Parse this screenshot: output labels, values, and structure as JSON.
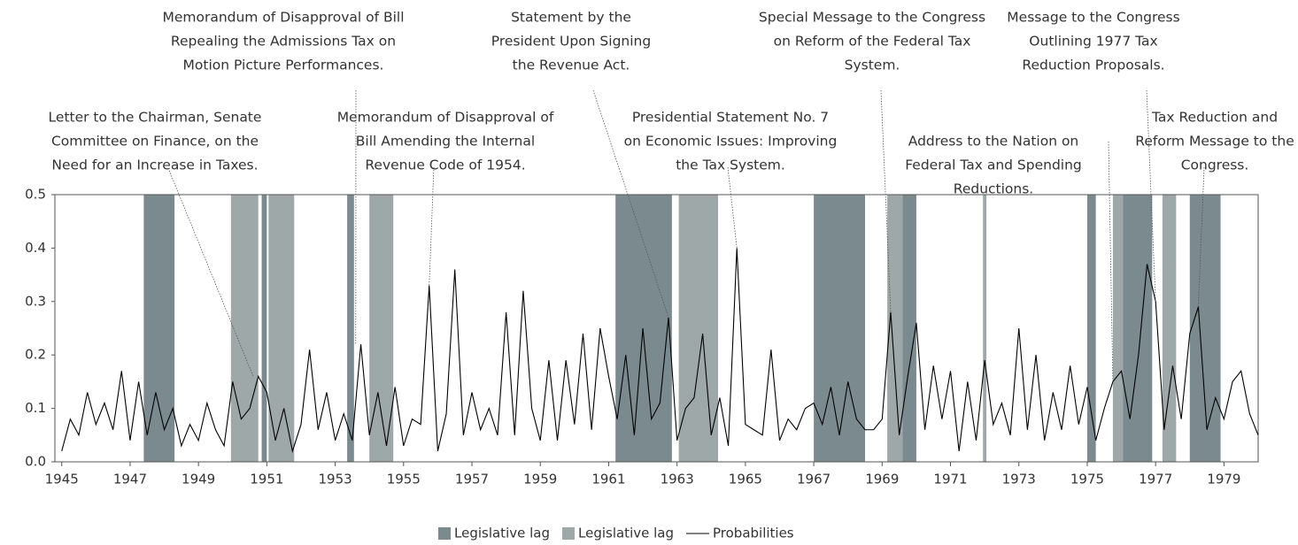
{
  "chart_data": {
    "type": "line",
    "xlim": [
      1944.8,
      1980
    ],
    "ylim": [
      0,
      0.5
    ],
    "xticks": [
      1945,
      1947,
      1949,
      1951,
      1953,
      1955,
      1957,
      1959,
      1961,
      1963,
      1965,
      1967,
      1969,
      1971,
      1973,
      1975,
      1977,
      1979
    ],
    "yticks": [
      {
        "value": 0,
        "label": "0.0"
      },
      0.1,
      0.2,
      0.3,
      0.4,
      0.5
    ],
    "bands": [
      {
        "name": "Legislative lag",
        "color": "#7b8a8f",
        "periods": [
          [
            1947.4,
            1948.3
          ],
          [
            1950.85,
            1951.0
          ],
          [
            1953.35,
            1953.55
          ],
          [
            1961.2,
            1962.85
          ],
          [
            1967.0,
            1968.5
          ],
          [
            1969.6,
            1970.0
          ],
          [
            1975.0,
            1975.25
          ],
          [
            1976.05,
            1976.9
          ],
          [
            1978.0,
            1978.9
          ]
        ]
      },
      {
        "name": "Legislative lag",
        "color": "#9ea8a8",
        "periods": [
          [
            1949.95,
            1950.75
          ],
          [
            1951.05,
            1951.8
          ],
          [
            1954.0,
            1954.7
          ],
          [
            1963.05,
            1964.2
          ],
          [
            1969.15,
            1969.6
          ],
          [
            1971.95,
            1972.05
          ],
          [
            1975.75,
            1976.05
          ],
          [
            1977.2,
            1977.6
          ]
        ]
      }
    ],
    "series": [
      {
        "name": "Probabilities",
        "color": "#000000",
        "x": [
          1945,
          1945.25,
          1945.5,
          1945.75,
          1946,
          1946.25,
          1946.5,
          1946.75,
          1947,
          1947.25,
          1947.5,
          1947.75,
          1948,
          1948.25,
          1948.5,
          1948.75,
          1949,
          1949.25,
          1949.5,
          1949.75,
          1950,
          1950.25,
          1950.5,
          1950.75,
          1951,
          1951.25,
          1951.5,
          1951.75,
          1952,
          1952.25,
          1952.5,
          1952.75,
          1953,
          1953.25,
          1953.5,
          1953.75,
          1954,
          1954.25,
          1954.5,
          1954.75,
          1955,
          1955.25,
          1955.5,
          1955.75,
          1956,
          1956.25,
          1956.5,
          1956.75,
          1957,
          1957.25,
          1957.5,
          1957.75,
          1958,
          1958.25,
          1958.5,
          1958.75,
          1959,
          1959.25,
          1959.5,
          1959.75,
          1960,
          1960.25,
          1960.5,
          1960.75,
          1961,
          1961.25,
          1961.5,
          1961.75,
          1962,
          1962.25,
          1962.5,
          1962.75,
          1963,
          1963.25,
          1963.5,
          1963.75,
          1964,
          1964.25,
          1964.5,
          1964.75,
          1965,
          1965.25,
          1965.5,
          1965.75,
          1966,
          1966.25,
          1966.5,
          1966.75,
          1967,
          1967.25,
          1967.5,
          1967.75,
          1968,
          1968.25,
          1968.5,
          1968.75,
          1969,
          1969.25,
          1969.5,
          1969.75,
          1970,
          1970.25,
          1970.5,
          1970.75,
          1971,
          1971.25,
          1971.5,
          1971.75,
          1972,
          1972.25,
          1972.5,
          1972.75,
          1973,
          1973.25,
          1973.5,
          1973.75,
          1974,
          1974.25,
          1974.5,
          1974.75,
          1975,
          1975.25,
          1975.5,
          1975.75,
          1976,
          1976.25,
          1976.5,
          1976.75,
          1977,
          1977.25,
          1977.5,
          1977.75,
          1978,
          1978.25,
          1978.5,
          1978.75,
          1979,
          1979.25,
          1979.5,
          1979.75,
          1980
        ],
        "values": [
          0.02,
          0.08,
          0.05,
          0.13,
          0.07,
          0.11,
          0.06,
          0.17,
          0.04,
          0.15,
          0.05,
          0.13,
          0.06,
          0.1,
          0.03,
          0.07,
          0.04,
          0.11,
          0.06,
          0.03,
          0.15,
          0.08,
          0.1,
          0.16,
          0.13,
          0.04,
          0.1,
          0.02,
          0.07,
          0.21,
          0.06,
          0.13,
          0.04,
          0.09,
          0.04,
          0.22,
          0.05,
          0.13,
          0.03,
          0.14,
          0.03,
          0.08,
          0.07,
          0.33,
          0.02,
          0.09,
          0.36,
          0.05,
          0.13,
          0.06,
          0.1,
          0.05,
          0.28,
          0.05,
          0.32,
          0.1,
          0.04,
          0.19,
          0.04,
          0.19,
          0.07,
          0.24,
          0.06,
          0.25,
          0.16,
          0.08,
          0.2,
          0.05,
          0.25,
          0.08,
          0.11,
          0.27,
          0.04,
          0.1,
          0.12,
          0.24,
          0.05,
          0.12,
          0.03,
          0.4,
          0.07,
          0.06,
          0.05,
          0.21,
          0.04,
          0.08,
          0.06,
          0.1,
          0.11,
          0.07,
          0.14,
          0.05,
          0.15,
          0.08,
          0.06,
          0.06,
          0.08,
          0.28,
          0.05,
          0.16,
          0.26,
          0.06,
          0.18,
          0.08,
          0.17,
          0.02,
          0.15,
          0.04,
          0.19,
          0.07,
          0.11,
          0.05,
          0.25,
          0.06,
          0.2,
          0.04,
          0.13,
          0.06,
          0.18,
          0.07,
          0.14,
          0.04,
          0.1,
          0.15,
          0.17,
          0.08,
          0.2,
          0.37,
          0.3,
          0.06,
          0.18,
          0.08,
          0.24,
          0.29,
          0.06,
          0.12,
          0.08,
          0.15,
          0.17,
          0.09,
          0.05
        ]
      }
    ],
    "annotations": [
      {
        "text": [
          "Letter to the Chairman, Senate",
          "Committee on Finance, on the",
          "Need for an Increase in Taxes."
        ],
        "x": 1950.6,
        "y": 0.16
      },
      {
        "text": [
          "Memorandum of Disapproval of Bill",
          "Repealing the Admissions Tax on",
          "Motion Picture Performances."
        ],
        "x": 1953.6,
        "y": 0.22
      },
      {
        "text": [
          "Memorandum of Disapproval of",
          "Bill Amending the Internal",
          "Revenue Code of 1954."
        ],
        "x": 1955.75,
        "y": 0.33
      },
      {
        "text": [
          "Statement by the",
          "President Upon Signing",
          "the Revenue Act."
        ],
        "x": 1962.75,
        "y": 0.27
      },
      {
        "text": [
          "Presidential Statement No. 7",
          "on Economic Issues: Improving",
          "the Tax System."
        ],
        "x": 1964.75,
        "y": 0.4
      },
      {
        "text": [
          "Special Message to the Congress",
          "on Reform of the Federal Tax",
          "System."
        ],
        "x": 1969.25,
        "y": 0.28
      },
      {
        "text": [
          "Address to the Nation on",
          "Federal Tax and Spending",
          "Reductions."
        ],
        "x": 1975.75,
        "y": 0.15
      },
      {
        "text": [
          "Message to the Congress",
          "Outlining 1977 Tax",
          "Reduction Proposals."
        ],
        "x": 1977.0,
        "y": 0.3
      },
      {
        "text": [
          "Tax Reduction and",
          "Reform Message to the",
          "Congress."
        ],
        "x": 1978.25,
        "y": 0.29
      }
    ]
  }
}
